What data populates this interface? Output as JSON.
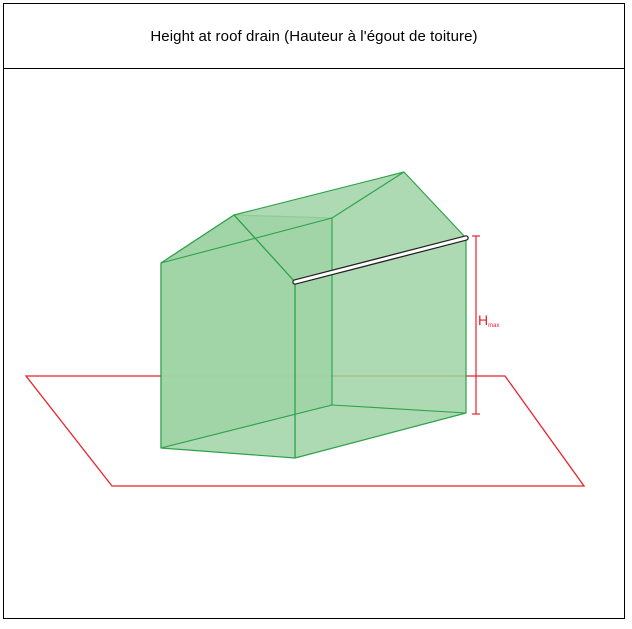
{
  "title": "Height at roof drain (Hauteur à l'égout de toiture)",
  "dimension_label": {
    "main": "H",
    "subscript": "max"
  },
  "colors": {
    "ground_line": "#e8232a",
    "building_fill": "#9fd3a4",
    "building_stroke": "#2ea24a",
    "eave_highlight": "#ffffff",
    "dimension": "#e8232a",
    "frame": "#000000"
  }
}
